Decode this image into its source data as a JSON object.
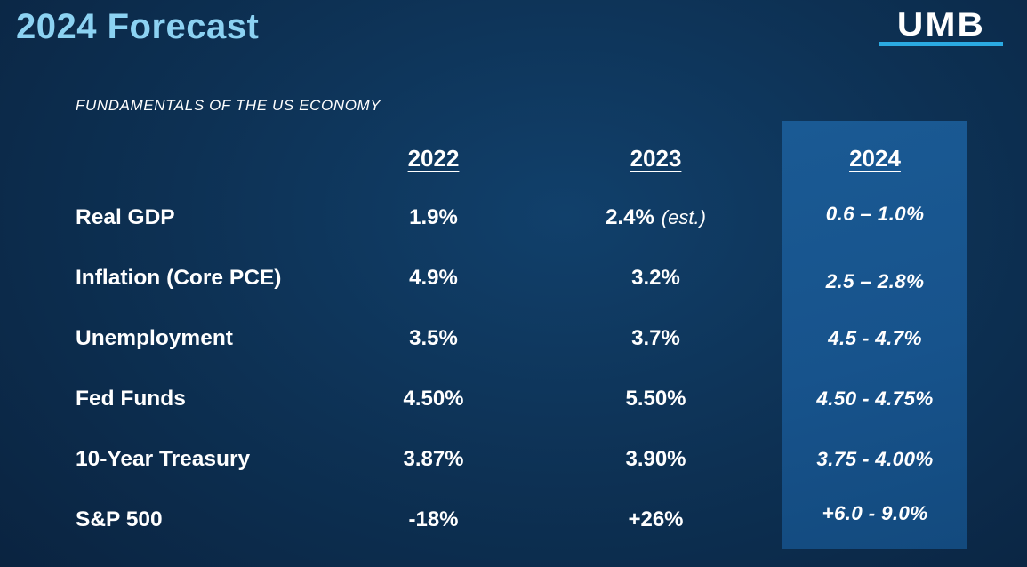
{
  "slide": {
    "title": "2024 Forecast",
    "subtitle": "FUNDAMENTALS OF THE US ECONOMY",
    "logo_text": "UMB"
  },
  "table": {
    "headers": [
      "2022",
      "2023",
      "2024"
    ],
    "rows": [
      {
        "label": "Real GDP",
        "v2022": "1.9%",
        "v2023": "2.4%",
        "note2023": "(est.)",
        "v2024": "0.6 – 1.0%"
      },
      {
        "label": "Inflation (Core PCE)",
        "v2022": "4.9%",
        "v2023": "3.2%",
        "note2023": "",
        "v2024": "2.5 – 2.8%"
      },
      {
        "label": "Unemployment",
        "v2022": "3.5%",
        "v2023": "3.7%",
        "note2023": "",
        "v2024": "4.5 - 4.7%"
      },
      {
        "label": "Fed Funds",
        "v2022": "4.50%",
        "v2023": "5.50%",
        "note2023": "",
        "v2024": "4.50 - 4.75%"
      },
      {
        "label": "10-Year Treasury",
        "v2022": "3.87%",
        "v2023": "3.90%",
        "note2023": "",
        "v2024": "3.75 - 4.00%"
      },
      {
        "label": "S&P 500",
        "v2022": "-18%",
        "v2023": "+26%",
        "note2023": "",
        "v2024": "+6.0 - 9.0%"
      }
    ]
  },
  "colors": {
    "bg-center": "#11406B",
    "bg-mid": "#0D3154",
    "bg-edge": "#0A223E",
    "title": "#8CD2F2",
    "panel": "#17538C",
    "accent": "#2BAAE2",
    "text": "#FFFFFF"
  }
}
